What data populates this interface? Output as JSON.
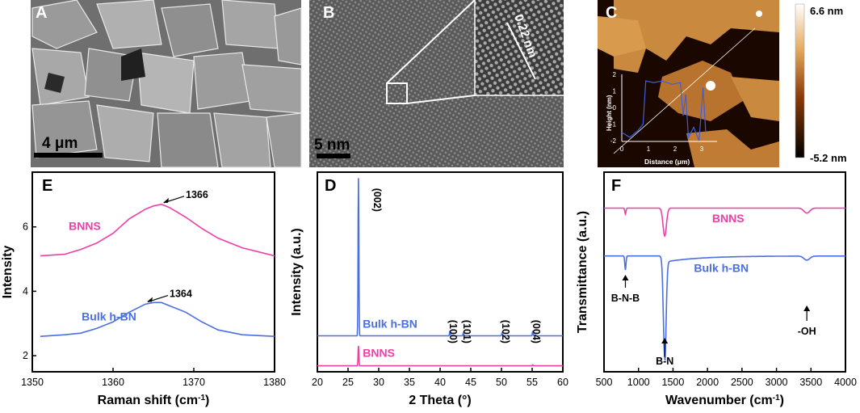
{
  "panels": {
    "A": {
      "letter": "A",
      "scale_bar": "4 μm"
    },
    "B": {
      "letter": "B",
      "scale_bar": "5 nm",
      "inset_label": "0.22 nm"
    },
    "C": {
      "letter": "C",
      "colorbar_max": "6.6 nm",
      "colorbar_min": "-5.2 nm",
      "inset_ylabel": "Height (nm)",
      "inset_xlabel": "Distance (μm)",
      "inset_yticks": [
        "2",
        "1",
        "0",
        "-1",
        "-2"
      ],
      "inset_xticks": [
        "0",
        "1",
        "2",
        "3"
      ],
      "colors": {
        "dark": "#1a0800",
        "mid": "#8a3c08",
        "light": "#d89a4c",
        "profile": "#3c5fe0"
      }
    },
    "E": {
      "letter": "E"
    },
    "D": {
      "letter": "D"
    },
    "F": {
      "letter": "F"
    }
  },
  "chart_data": [
    {
      "id": "E",
      "type": "line",
      "xlabel": "Raman shift (cm⁻¹)",
      "ylabel": "Intensity",
      "xlim": [
        1350,
        1380
      ],
      "ylim": [
        1.5,
        7.7
      ],
      "xticks": [
        "1350",
        "1360",
        "1370",
        "1380"
      ],
      "yticks": [
        "2",
        "4",
        "6"
      ],
      "series": [
        {
          "name": "BNNS",
          "color": "#ee3fa6",
          "x": [
            1351,
            1354,
            1356,
            1358,
            1360,
            1362,
            1364,
            1365,
            1366,
            1367,
            1369,
            1371,
            1373,
            1376,
            1380
          ],
          "y": [
            5.1,
            5.15,
            5.3,
            5.5,
            5.8,
            6.25,
            6.55,
            6.65,
            6.7,
            6.6,
            6.3,
            5.95,
            5.65,
            5.35,
            5.1
          ]
        },
        {
          "name": "Bulk h-BN",
          "color": "#4a6fe3",
          "x": [
            1351,
            1354,
            1356,
            1358,
            1360,
            1362,
            1364,
            1365,
            1366,
            1367,
            1369,
            1371,
            1373,
            1376,
            1380
          ],
          "y": [
            2.6,
            2.65,
            2.7,
            2.85,
            3.05,
            3.35,
            3.6,
            3.65,
            3.65,
            3.55,
            3.35,
            3.05,
            2.8,
            2.65,
            2.6
          ]
        }
      ],
      "annotations": [
        {
          "text": "1366",
          "x": 1366,
          "y": 6.7
        },
        {
          "text": "1364",
          "x": 1364,
          "y": 3.62
        }
      ]
    },
    {
      "id": "D",
      "type": "line",
      "xlabel": "2 Theta (°)",
      "ylabel": "Intensity (a.u.)",
      "xlim": [
        20,
        60
      ],
      "ylim": [
        0,
        100
      ],
      "xticks": [
        "20",
        "25",
        "30",
        "35",
        "40",
        "45",
        "50",
        "55",
        "60"
      ],
      "series": [
        {
          "name": "Bulk h-BN",
          "color": "#4a6fe3",
          "baseline": 18,
          "peaks": [
            {
              "x": 26.7,
              "h": 79
            },
            {
              "x": 41.6,
              "h": 2.5
            },
            {
              "x": 43.8,
              "h": 1.5
            },
            {
              "x": 50.1,
              "h": 1.5
            },
            {
              "x": 55.1,
              "h": 2.5
            }
          ]
        },
        {
          "name": "BNNS",
          "color": "#ee3fa6",
          "baseline": 3,
          "peaks": [
            {
              "x": 26.7,
              "h": 10
            },
            {
              "x": 55.1,
              "h": 0.5
            }
          ]
        }
      ],
      "peak_labels": [
        {
          "text": "(002)",
          "x": 29.2,
          "y": 92
        },
        {
          "text": "(100)",
          "x": 41.6,
          "y": 26
        },
        {
          "text": "(101)",
          "x": 43.8,
          "y": 26
        },
        {
          "text": "(102)",
          "x": 50.1,
          "y": 26
        },
        {
          "text": "(004)",
          "x": 55.1,
          "y": 26
        }
      ]
    },
    {
      "id": "F",
      "type": "line",
      "xlabel": "Wavenumber (cm⁻¹)",
      "ylabel": "Transmittance (a.u.)",
      "xlim": [
        500,
        4000
      ],
      "ylim": [
        0,
        100
      ],
      "xticks": [
        "500",
        "1000",
        "1500",
        "2000",
        "2500",
        "3000",
        "3500",
        "4000"
      ],
      "series": [
        {
          "name": "BNNS",
          "color": "#ee3fa6",
          "baseline": 82,
          "dips": [
            {
              "x": 810,
              "d": 3,
              "w": 12
            },
            {
              "x": 1380,
              "d": 14,
              "w": 35
            },
            {
              "x": 3440,
              "d": 2.5,
              "w": 60
            }
          ]
        },
        {
          "name": "Bulk h-BN",
          "color": "#4a6fe3",
          "baseline": 58,
          "dips": [
            {
              "x": 810,
              "d": 7,
              "w": 12
            },
            {
              "x": 1380,
              "d": 51,
              "w": 28
            },
            {
              "x": 3440,
              "d": 2,
              "w": 60
            }
          ]
        }
      ],
      "annotations": [
        {
          "text": "B-N-B",
          "x": 810
        },
        {
          "text": "B-N",
          "x": 1380
        },
        {
          "text": "-OH",
          "x": 3440
        }
      ]
    }
  ]
}
